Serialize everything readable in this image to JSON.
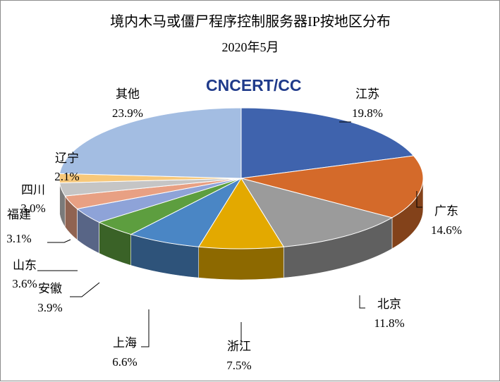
{
  "chart_data": {
    "type": "pie",
    "title": "境内木马或僵尸程序控制服务器IP按地区分布",
    "subtitle": "2020年5月",
    "logo_text": "CNCERT/CC",
    "logo_color": "#1f3a8a",
    "slices": [
      {
        "name": "江苏",
        "value": 19.8,
        "label": "19.8%",
        "color": "#3f63ad"
      },
      {
        "name": "广东",
        "value": 14.6,
        "label": "14.6%",
        "color": "#d46a2a"
      },
      {
        "name": "北京",
        "value": 11.8,
        "label": "11.8%",
        "color": "#9b9b9b"
      },
      {
        "name": "浙江",
        "value": 7.5,
        "label": "7.5%",
        "color": "#e3a900"
      },
      {
        "name": "上海",
        "value": 6.6,
        "label": "6.6%",
        "color": "#4a86c5"
      },
      {
        "name": "安徽",
        "value": 3.9,
        "label": "3.9%",
        "color": "#5d9e3f"
      },
      {
        "name": "山东",
        "value": 3.6,
        "label": "3.6%",
        "color": "#8ea3d8"
      },
      {
        "name": "福建",
        "value": 3.1,
        "label": "3.1%",
        "color": "#e8a083"
      },
      {
        "name": "四川",
        "value": 3.0,
        "label": "3.0%",
        "color": "#c5c5c5"
      },
      {
        "name": "辽宁",
        "value": 2.1,
        "label": "2.1%",
        "color": "#f7c87a"
      },
      {
        "name": "其他",
        "value": 23.9,
        "label": "23.9%",
        "color": "#a3bde2"
      }
    ]
  }
}
